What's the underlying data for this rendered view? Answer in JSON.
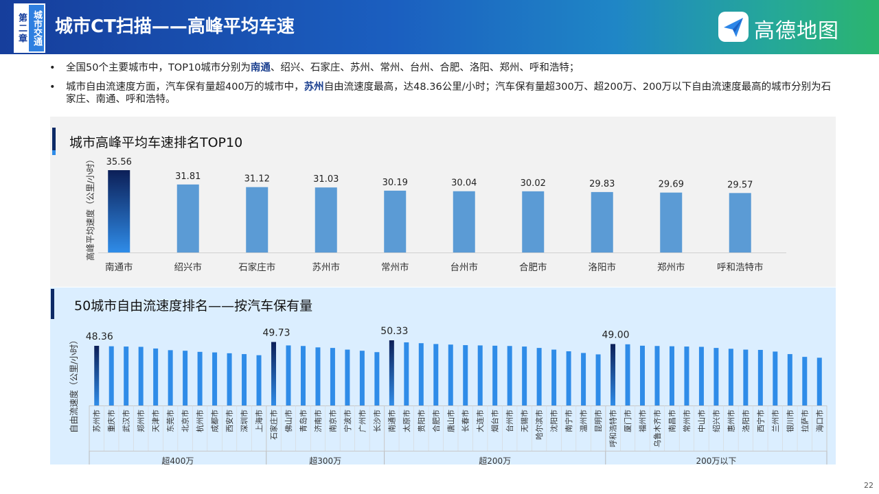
{
  "header": {
    "chapter_a": "第二章",
    "chapter_b": "城市交通",
    "title": "城市CT扫描——高峰平均车速",
    "logo_text": "高德地图"
  },
  "bullets": [
    {
      "pre": "全国50个主要城市中，TOP10城市分别为",
      "hl": "南通",
      "post": "、绍兴、石家庄、苏州、常州、台州、合肥、洛阳、郑州、呼和浩特；"
    },
    {
      "pre": "城市自由流速度方面，汽车保有量超400万的城市中，",
      "hl": "苏州",
      "post": "自由流速度最高，达48.36公里/小时；汽车保有量超300万、超200万、200万以下自由流速度最高的城市分别为石家庄、南通、呼和浩特。"
    }
  ],
  "page_number": "22",
  "colors": {
    "bar": "#5b9bd5",
    "bar_bright": "#2f8ce8",
    "highlight_top": "#0c1f57",
    "accent_dark": "#0d2a66"
  },
  "chart_data": [
    {
      "type": "bar",
      "title": "城市高峰平均车速排名TOP10",
      "ylabel": "高峰平均速度（公里/小时）",
      "categories": [
        "南通市",
        "绍兴市",
        "石家庄市",
        "苏州市",
        "常州市",
        "台州市",
        "合肥市",
        "洛阳市",
        "郑州市",
        "呼和浩特市"
      ],
      "values": [
        35.56,
        31.81,
        31.12,
        31.03,
        30.19,
        30.04,
        30.02,
        29.83,
        29.69,
        29.57
      ],
      "value_labels": [
        "35.56",
        "31.81",
        "31.12",
        "31.03",
        "30.19",
        "30.04",
        "30.02",
        "29.83",
        "29.69",
        "29.57"
      ],
      "ylim": [
        0,
        38
      ],
      "highlight_index": 0,
      "grid": false
    },
    {
      "type": "bar",
      "title": "50城市自由流速度排名——按汽车保有量",
      "ylabel": "自由流速度（公里/小时）",
      "ylim": [
        0,
        52
      ],
      "grid": false,
      "groups": [
        {
          "name": "超400万",
          "top_label": "48.36",
          "categories": [
            "苏州市",
            "重庆市",
            "武汉市",
            "郑州市",
            "天津市",
            "东莞市",
            "北京市",
            "杭州市",
            "成都市",
            "西安市",
            "深圳市",
            "上海市"
          ],
          "values": [
            48.36,
            48.2,
            48.1,
            48.0,
            47.4,
            46.8,
            46.6,
            46.2,
            46.0,
            45.7,
            45.4,
            45.0
          ]
        },
        {
          "name": "超300万",
          "top_label": "49.73",
          "categories": [
            "石家庄市",
            "佛山市",
            "青岛市",
            "济南市",
            "南京市",
            "宁波市",
            "广州市",
            "长沙市"
          ],
          "values": [
            49.73,
            48.5,
            48.3,
            47.8,
            47.6,
            47.0,
            46.6,
            46.1
          ]
        },
        {
          "name": "超200万",
          "top_label": "50.33",
          "categories": [
            "南通市",
            "太原市",
            "贵阳市",
            "合肥市",
            "唐山市",
            "长春市",
            "大连市",
            "烟台市",
            "台州市",
            "无锡市",
            "哈尔滨市",
            "沈阳市",
            "南宁市",
            "温州市",
            "昆明市"
          ],
          "values": [
            50.33,
            49.6,
            49.3,
            49.0,
            48.8,
            48.6,
            48.5,
            48.4,
            48.3,
            48.1,
            47.6,
            47.0,
            46.4,
            45.8,
            45.3
          ]
        },
        {
          "name": "200万以下",
          "top_label": "49.00",
          "categories": [
            "呼和浩特市",
            "厦门市",
            "福州市",
            "乌鲁木齐市",
            "南昌市",
            "常州市",
            "中山市",
            "绍兴市",
            "惠州市",
            "洛阳市",
            "西宁市",
            "兰州市",
            "银川市",
            "拉萨市",
            "海口市"
          ],
          "values": [
            49.0,
            48.9,
            48.4,
            48.3,
            48.2,
            48.1,
            48.0,
            47.6,
            47.3,
            47.0,
            46.9,
            46.3,
            45.4,
            44.4,
            44.1
          ]
        }
      ]
    }
  ]
}
